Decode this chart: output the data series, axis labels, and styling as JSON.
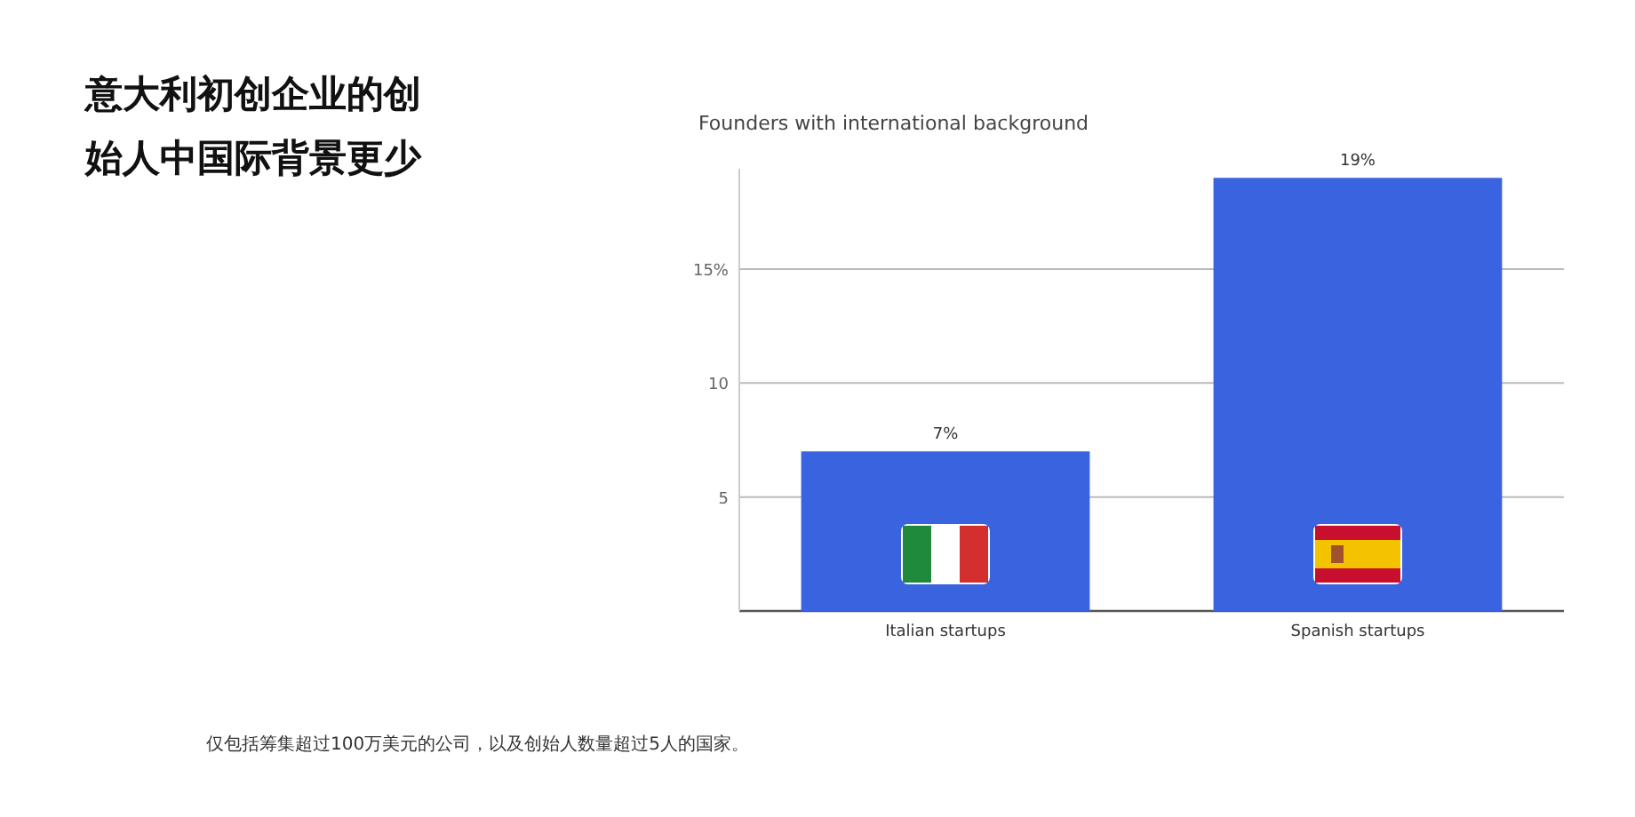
{
  "chart_data": {
    "type": "bar",
    "title": "意大利初创企业的创始人中国际背景更少",
    "subtitle": "Founders with international background",
    "categories": [
      "Italian startups",
      "Spanish startups"
    ],
    "values": [
      7,
      19
    ],
    "value_labels": [
      "7%",
      "19%"
    ],
    "color": "#3a63e0",
    "ylim": [
      0,
      19.4
    ],
    "yticks": [
      {
        "value": 0,
        "label": null
      },
      5,
      10,
      {
        "value": 15,
        "label": "15%"
      }
    ],
    "grid": "y",
    "annotations": [
      "仅包括筹集超过100万美元的公司，以及创始人数量超过5人的国家。"
    ]
  }
}
